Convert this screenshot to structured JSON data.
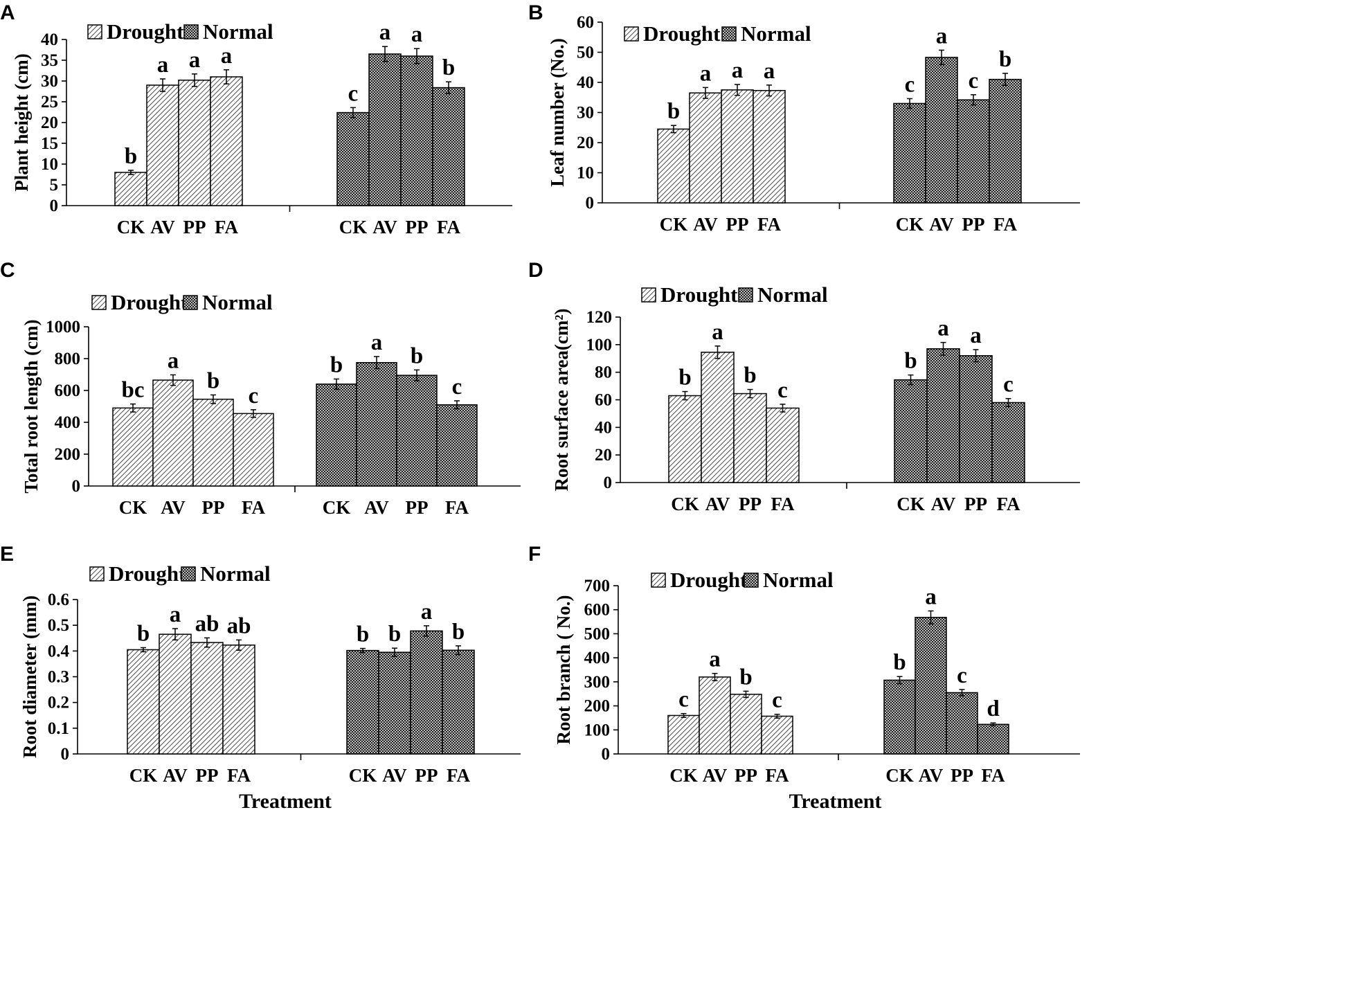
{
  "chart_data": [
    {
      "panel": "A",
      "type": "bar",
      "ylabel": "Plant height (cm)",
      "xlabel": "",
      "ylim": [
        0,
        40
      ],
      "ystep": 5,
      "legend": [
        "Drought",
        "Normal"
      ],
      "groups": [
        {
          "name": "Drought",
          "categories": [
            "CK",
            "AV",
            "PP",
            "FA"
          ],
          "values": [
            8,
            29,
            30.2,
            31
          ],
          "errors": [
            0.5,
            1.5,
            1.5,
            1.7
          ],
          "letters": [
            "b",
            "a",
            "a",
            "a"
          ]
        },
        {
          "name": "Normal",
          "categories": [
            "CK",
            "AV",
            "PP",
            "FA"
          ],
          "values": [
            22.4,
            36.5,
            36,
            28.4
          ],
          "errors": [
            1.2,
            1.8,
            1.8,
            1.4
          ],
          "letters": [
            "c",
            "a",
            "a",
            "b"
          ]
        }
      ]
    },
    {
      "panel": "B",
      "type": "bar",
      "ylabel": "Leaf number (No.)",
      "xlabel": "",
      "ylim": [
        0,
        60
      ],
      "ystep": 10,
      "legend": [
        "Drought",
        "Normal"
      ],
      "groups": [
        {
          "name": "Drought",
          "categories": [
            "CK",
            "AV",
            "PP",
            "FA"
          ],
          "values": [
            24.5,
            36.5,
            37.5,
            37.3
          ],
          "errors": [
            1.2,
            1.8,
            1.8,
            1.8
          ],
          "letters": [
            "b",
            "a",
            "a",
            "a"
          ]
        },
        {
          "name": "Normal",
          "categories": [
            "CK",
            "AV",
            "PP",
            "FA"
          ],
          "values": [
            33,
            48.3,
            34.2,
            41
          ],
          "errors": [
            1.6,
            2.4,
            1.7,
            2
          ],
          "letters": [
            "c",
            "a",
            "c",
            "b"
          ]
        }
      ]
    },
    {
      "panel": "C",
      "type": "bar",
      "ylabel": "Total root length (cm)",
      "xlabel": "",
      "ylim": [
        0,
        1000
      ],
      "ystep": 200,
      "legend": [
        "Drought",
        "Normal"
      ],
      "groups": [
        {
          "name": "Drought",
          "categories": [
            "CK",
            "AV",
            "PP",
            "FA"
          ],
          "values": [
            490,
            665,
            545,
            455
          ],
          "errors": [
            25,
            33,
            27,
            24
          ],
          "letters": [
            "bc",
            "a",
            "b",
            "c"
          ]
        },
        {
          "name": "Normal",
          "categories": [
            "CK",
            "AV",
            "PP",
            "FA"
          ],
          "values": [
            640,
            775,
            695,
            510
          ],
          "errors": [
            32,
            38,
            34,
            25
          ],
          "letters": [
            "b",
            "a",
            "b",
            "c"
          ]
        }
      ]
    },
    {
      "panel": "D",
      "type": "bar",
      "ylabel": "Root surface area(cm²)",
      "xlabel": "",
      "ylim": [
        0,
        120
      ],
      "ystep": 20,
      "legend": [
        "Drought",
        "Normal"
      ],
      "groups": [
        {
          "name": "Drought",
          "categories": [
            "CK",
            "AV",
            "PP",
            "FA"
          ],
          "values": [
            63,
            94.5,
            64.5,
            54
          ],
          "errors": [
            3,
            4.5,
            3,
            2.8
          ],
          "letters": [
            "b",
            "a",
            "b",
            "c"
          ]
        },
        {
          "name": "Normal",
          "categories": [
            "CK",
            "AV",
            "PP",
            "FA"
          ],
          "values": [
            74.5,
            97,
            92,
            58
          ],
          "errors": [
            3.5,
            4.6,
            4.4,
            2.9
          ],
          "letters": [
            "b",
            "a",
            "a",
            "c"
          ]
        }
      ]
    },
    {
      "panel": "E",
      "type": "bar",
      "ylabel": "Root diameter (mm)",
      "xlabel": "Treatment",
      "ylim": [
        0,
        0.6
      ],
      "ystep": 0.1,
      "legend": [
        "Drought",
        "Normal"
      ],
      "groups": [
        {
          "name": "Drought",
          "categories": [
            "CK",
            "AV",
            "PP",
            "FA"
          ],
          "values": [
            0.405,
            0.465,
            0.433,
            0.423
          ],
          "errors": [
            0.008,
            0.022,
            0.018,
            0.02
          ],
          "letters": [
            "b",
            "a",
            "ab",
            "ab"
          ]
        },
        {
          "name": "Normal",
          "categories": [
            "CK",
            "AV",
            "PP",
            "FA"
          ],
          "values": [
            0.402,
            0.395,
            0.478,
            0.403
          ],
          "errors": [
            0.008,
            0.016,
            0.02,
            0.017
          ],
          "letters": [
            "b",
            "b",
            "a",
            "b"
          ]
        }
      ]
    },
    {
      "panel": "F",
      "type": "bar",
      "ylabel": "Root branch ( No.)",
      "xlabel": "Treatment",
      "ylim": [
        0,
        700
      ],
      "ystep": 100,
      "legend": [
        "Drought",
        "Normal"
      ],
      "groups": [
        {
          "name": "Drought",
          "categories": [
            "CK",
            "AV",
            "PP",
            "FA"
          ],
          "values": [
            160,
            320,
            248,
            157
          ],
          "errors": [
            8,
            15,
            13,
            8
          ],
          "letters": [
            "c",
            "a",
            "b",
            "c"
          ]
        },
        {
          "name": "Normal",
          "categories": [
            "CK",
            "AV",
            "PP",
            "FA"
          ],
          "values": [
            307,
            568,
            255,
            123
          ],
          "errors": [
            15,
            27,
            13,
            6
          ],
          "letters": [
            "b",
            "a",
            "c",
            "d"
          ]
        }
      ]
    }
  ]
}
